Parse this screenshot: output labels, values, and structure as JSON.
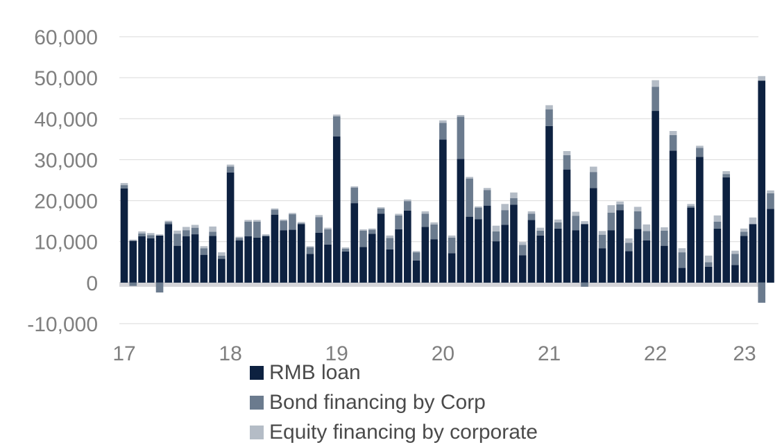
{
  "chart_data": {
    "type": "bar",
    "stacked": true,
    "title": "",
    "xlabel": "",
    "ylabel": "",
    "ylim": [
      -10000,
      60000
    ],
    "y_ticks": [
      -10000,
      0,
      10000,
      20000,
      30000,
      40000,
      50000,
      60000
    ],
    "y_tick_labels": [
      "-10,000",
      "0",
      "10,000",
      "20,000",
      "30,000",
      "40,000",
      "50,000",
      "60,000"
    ],
    "x_tick_labels": [
      "17",
      "18",
      "19",
      "20",
      "21",
      "22",
      "23"
    ],
    "x_tick_month_index": [
      0,
      12,
      24,
      36,
      48,
      60,
      72
    ],
    "grid": "horizontal",
    "zero_band": true,
    "legend_position": "bottom",
    "colors": {
      "rmb": "#0d2140",
      "bond": "#6b7b8e",
      "equity": "#b4bcc6",
      "zero_band": "#d4d4d8",
      "grid": "#d9d9d9"
    },
    "categories": [
      "2017-01",
      "2017-02",
      "2017-03",
      "2017-04",
      "2017-05",
      "2017-06",
      "2017-07",
      "2017-08",
      "2017-09",
      "2017-10",
      "2017-11",
      "2017-12",
      "2018-01",
      "2018-02",
      "2018-03",
      "2018-04",
      "2018-05",
      "2018-06",
      "2018-07",
      "2018-08",
      "2018-09",
      "2018-10",
      "2018-11",
      "2018-12",
      "2019-01",
      "2019-02",
      "2019-03",
      "2019-04",
      "2019-05",
      "2019-06",
      "2019-07",
      "2019-08",
      "2019-09",
      "2019-10",
      "2019-11",
      "2019-12",
      "2020-01",
      "2020-02",
      "2020-03",
      "2020-04",
      "2020-05",
      "2020-06",
      "2020-07",
      "2020-08",
      "2020-09",
      "2020-10",
      "2020-11",
      "2020-12",
      "2021-01",
      "2021-02",
      "2021-03",
      "2021-04",
      "2021-05",
      "2021-06",
      "2021-07",
      "2021-08",
      "2021-09",
      "2021-10",
      "2021-11",
      "2021-12",
      "2022-01",
      "2022-02",
      "2022-03",
      "2022-04",
      "2022-05",
      "2022-06",
      "2022-07",
      "2022-08",
      "2022-09",
      "2022-10",
      "2022-11",
      "2022-12",
      "2023-01",
      "2023-02"
    ],
    "series": [
      {
        "name": "RMB loan",
        "color": "#0d2140",
        "values": [
          23000,
          10200,
          11300,
          10800,
          11500,
          14300,
          9000,
          11300,
          11800,
          6800,
          11400,
          5800,
          26900,
          10300,
          11300,
          11000,
          11300,
          16600,
          12800,
          12900,
          14300,
          7000,
          12200,
          9300,
          35700,
          7600,
          19400,
          8700,
          11900,
          16800,
          8100,
          13000,
          17600,
          5400,
          13600,
          10600,
          34900,
          7200,
          30200,
          16100,
          15500,
          18800,
          10100,
          14100,
          19000,
          6700,
          15300,
          11500,
          38200,
          13200,
          27600,
          12800,
          14300,
          23100,
          8400,
          12800,
          17700,
          7700,
          13100,
          10300,
          41900,
          9000,
          32200,
          3600,
          18300,
          30700,
          3900,
          13200,
          25700,
          4300,
          11400,
          14300,
          49300,
          18000
        ]
      },
      {
        "name": "Bond financing by Corp",
        "color": "#6b7b8e",
        "values": [
          800,
          -800,
          700,
          800,
          -2400,
          500,
          2900,
          1500,
          1600,
          1600,
          1000,
          800,
          1400,
          600,
          3600,
          3900,
          200,
          1200,
          2300,
          3800,
          200,
          1600,
          3800,
          3700,
          4900,
          700,
          3800,
          4000,
          1000,
          1300,
          2800,
          3400,
          2300,
          2000,
          3200,
          3600,
          4100,
          3800,
          10300,
          9300,
          2800,
          3800,
          2400,
          3600,
          1600,
          2500,
          1500,
          1200,
          4100,
          1500,
          3500,
          3500,
          -1000,
          3900,
          3300,
          4300,
          1400,
          2000,
          4300,
          2300,
          5900,
          3700,
          3800,
          3800,
          400,
          2200,
          1100,
          1700,
          800,
          2700,
          1000,
          0,
          -4900,
          3800
        ]
      },
      {
        "name": "Equity financing by corporate",
        "color": "#b4bcc6",
        "values": [
          500,
          300,
          500,
          500,
          300,
          300,
          800,
          800,
          700,
          500,
          1300,
          800,
          500,
          300,
          400,
          400,
          300,
          300,
          300,
          300,
          300,
          300,
          500,
          400,
          400,
          300,
          300,
          300,
          300,
          300,
          600,
          400,
          400,
          300,
          600,
          500,
          600,
          500,
          400,
          400,
          300,
          500,
          1400,
          1500,
          1400,
          700,
          600,
          700,
          1000,
          700,
          1000,
          1000,
          700,
          1300,
          900,
          1800,
          700,
          1100,
          1100,
          1600,
          1600,
          800,
          1000,
          1000,
          500,
          500,
          1600,
          1500,
          700,
          800,
          800,
          1600,
          1100,
          700
        ]
      }
    ]
  }
}
